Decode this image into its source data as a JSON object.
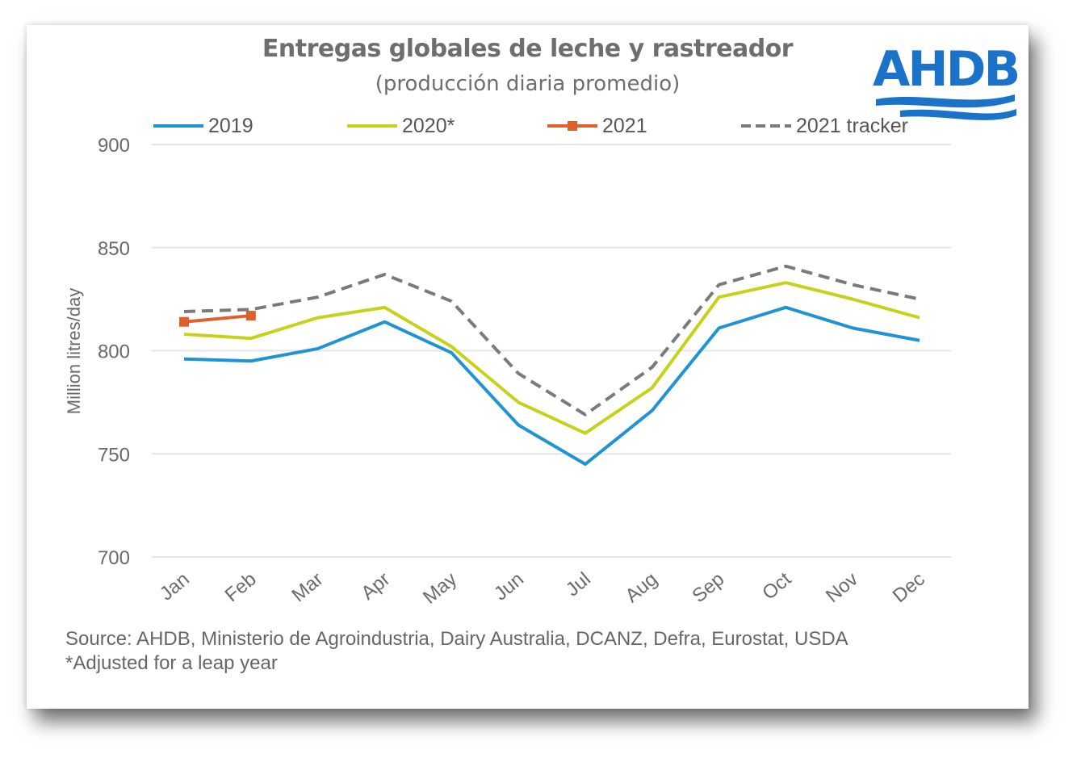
{
  "logo": {
    "text": "AHDB",
    "color": "#1a73c9"
  },
  "chart_data": {
    "type": "line",
    "title": "Entregas globales de leche y rastreador",
    "subtitle": "(producción diaria promedio)",
    "ylabel": "Million litres/day",
    "xlabel": "",
    "ylim": [
      700,
      900
    ],
    "yticks": [
      700,
      750,
      800,
      850,
      900
    ],
    "grid": true,
    "legend_position": "top",
    "categories": [
      "Jan",
      "Feb",
      "Mar",
      "Apr",
      "May",
      "Jun",
      "Jul",
      "Aug",
      "Sep",
      "Oct",
      "Nov",
      "Dec"
    ],
    "series": [
      {
        "name": "2019",
        "color": "#1e93d6",
        "style": "solid",
        "marker": "none",
        "values": [
          796,
          795,
          801,
          814,
          799,
          764,
          745,
          771,
          811,
          821,
          811,
          805
        ]
      },
      {
        "name": "2020*",
        "color": "#c8d11a",
        "style": "solid",
        "marker": "none",
        "values": [
          808,
          806,
          816,
          821,
          802,
          775,
          760,
          782,
          826,
          833,
          825,
          816
        ]
      },
      {
        "name": "2021",
        "color": "#e0602a",
        "style": "solid",
        "marker": "square",
        "values": [
          814,
          817,
          null,
          null,
          null,
          null,
          null,
          null,
          null,
          null,
          null,
          null
        ]
      },
      {
        "name": "2021 tracker",
        "color": "#7a7a7a",
        "style": "dashed",
        "marker": "none",
        "values": [
          819,
          820,
          826,
          837,
          824,
          789,
          769,
          792,
          832,
          841,
          832,
          825
        ]
      }
    ]
  },
  "source": {
    "line1": "Source: AHDB, Ministerio de Agroindustria, Dairy Australia, DCANZ, Defra, Eurostat, USDA",
    "line2": "*Adjusted for a leap year"
  }
}
